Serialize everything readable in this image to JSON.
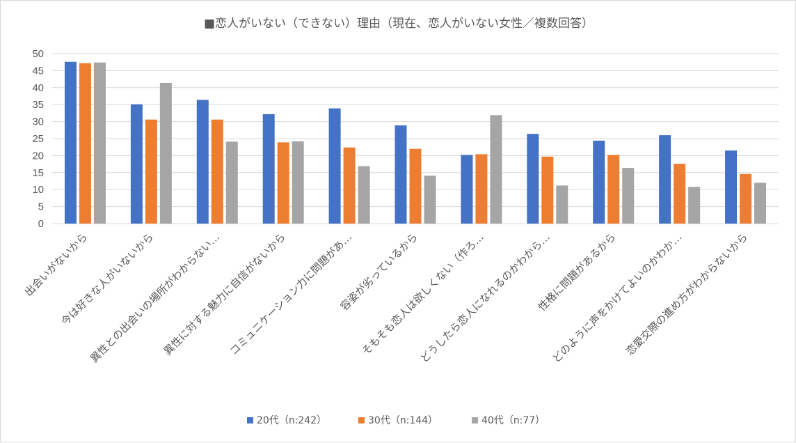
{
  "chart_data": {
    "type": "bar",
    "title": "■恋人がいない（できない）理由（現在、恋人がいない女性／複数回答）",
    "categories": [
      "出会いがないから",
      "今は好きな人がいないから",
      "異性との出会いの場所がわからない…",
      "異性に対する魅力に自信がないから",
      "コミュニケーション力に問題があ…",
      "容姿が劣っているから",
      "そもそも恋人は欲しくない（作ろ…",
      "どうしたら恋人になれるのかわから…",
      "性格に問題があるから",
      "どのように声をかけてよいのかわか…",
      "恋愛交際の進め方がわからないから"
    ],
    "series": [
      {
        "name": "20代（n:242）",
        "color": "#4472C4",
        "values": [
          47.6,
          35.1,
          36.4,
          32.2,
          33.9,
          28.9,
          20.2,
          26.4,
          24.4,
          26.0,
          21.5
        ]
      },
      {
        "name": "30代（n:144）",
        "color": "#ED7D31",
        "values": [
          47.2,
          30.6,
          30.6,
          23.9,
          22.4,
          22.0,
          20.4,
          19.7,
          20.2,
          17.6,
          14.6
        ]
      },
      {
        "name": "40代（n:77）",
        "color": "#A5A5A5",
        "values": [
          47.4,
          41.4,
          24.1,
          24.2,
          16.9,
          14.1,
          31.9,
          11.2,
          16.4,
          10.8,
          12.0
        ]
      }
    ],
    "y_ticks": [
      "0",
      "5",
      "10",
      "15",
      "20",
      "25",
      "30",
      "35",
      "40",
      "45",
      "50"
    ],
    "ylim": [
      0,
      50
    ],
    "grid": true,
    "legend_position": "bottom"
  }
}
